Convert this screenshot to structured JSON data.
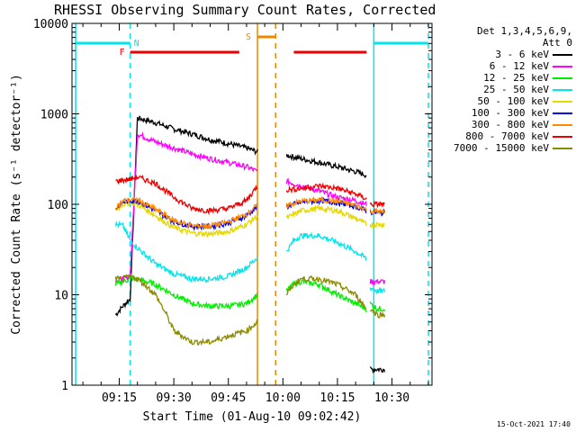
{
  "title": "RHESSI Observing Summary Count Rates, Corrected",
  "timestamp": "15-Oct-2021 17:40",
  "legend": {
    "header": [
      "Det 1,3,4,5,6,9,",
      "Att 0"
    ]
  },
  "chart_data": {
    "type": "line",
    "title": "RHESSI Observing Summary Count Rates, Corrected",
    "xlabel": "Start Time (01-Aug-10 09:02:42)",
    "ylabel": "Corrected Count Rate (s⁻¹ detector⁻¹)",
    "yscale": "log",
    "ylim": [
      1,
      10000
    ],
    "xlim": [
      "09:02",
      "10:41"
    ],
    "xticks": [
      "09:15",
      "09:30",
      "09:45",
      "10:00",
      "10:15",
      "10:30"
    ],
    "yticks": [
      "1",
      "10",
      "100",
      "1000",
      "10000"
    ],
    "legend_position": "right",
    "flags": [
      {
        "name": "N",
        "color": "#00e5ee",
        "segments": [
          [
            "09:03",
            "09:18"
          ],
          [
            "10:25",
            "10:40"
          ]
        ]
      },
      {
        "name": "F",
        "color": "#ee0000",
        "segments": [
          [
            "09:18",
            "09:48"
          ],
          [
            "10:03",
            "10:23"
          ]
        ]
      },
      {
        "name": "S",
        "color": "#ee8800",
        "segments": [
          [
            "09:53",
            "09:58"
          ]
        ]
      }
    ],
    "vertical_lines": [
      {
        "color": "#00e5ee",
        "style": "solid",
        "times": [
          "09:03",
          "10:25"
        ]
      },
      {
        "color": "#00e5ee",
        "style": "dashed",
        "times": [
          "09:18",
          "10:40"
        ]
      },
      {
        "color": "#ee8800",
        "style": "solid",
        "times": [
          "09:53"
        ]
      },
      {
        "color": "#ee8800",
        "style": "dashed",
        "times": [
          "09:58"
        ]
      }
    ],
    "series": [
      {
        "name": "3 - 6 keV",
        "color": "#000000",
        "segments": [
          {
            "t": [
              "09:14",
              "09:16",
              "09:18",
              "09:20",
              "09:25",
              "09:30",
              "09:35",
              "09:40",
              "09:45",
              "09:50",
              "09:53"
            ],
            "y": [
              6,
              7.5,
              9,
              900,
              800,
              680,
              600,
              520,
              470,
              420,
              380
            ]
          },
          {
            "t": [
              "10:01",
              "10:05",
              "10:10",
              "10:15",
              "10:20",
              "10:23"
            ],
            "y": [
              350,
              320,
              290,
              260,
              230,
              210
            ]
          },
          {
            "t": [
              "10:24",
              "10:28"
            ],
            "y": [
              1.5,
              1.5
            ]
          }
        ]
      },
      {
        "name": "6 - 12 keV",
        "color": "#ff00ff",
        "segments": [
          {
            "t": [
              "09:14",
              "09:16",
              "09:18",
              "09:20",
              "09:25",
              "09:30",
              "09:35",
              "09:40",
              "09:45",
              "09:50",
              "09:53"
            ],
            "y": [
              14,
              15,
              16,
              600,
              490,
              420,
              360,
              320,
              290,
              260,
              230
            ]
          },
          {
            "t": [
              "10:01",
              "10:05",
              "10:10",
              "10:15",
              "10:20",
              "10:23"
            ],
            "y": [
              180,
              160,
              140,
              120,
              110,
              100
            ]
          },
          {
            "t": [
              "10:24",
              "10:28"
            ],
            "y": [
              14,
              14
            ]
          }
        ]
      },
      {
        "name": "12 - 25 keV",
        "color": "#00ee00",
        "segments": [
          {
            "t": [
              "09:14",
              "09:16",
              "09:18",
              "09:20",
              "09:25",
              "09:30",
              "09:35",
              "09:40",
              "09:45",
              "09:50",
              "09:53"
            ],
            "y": [
              13,
              14,
              15,
              15,
              13,
              10,
              8,
              7.5,
              7.5,
              8,
              10
            ]
          },
          {
            "t": [
              "10:01",
              "10:03",
              "10:05",
              "10:10",
              "10:15",
              "10:20",
              "10:23"
            ],
            "y": [
              11,
              13,
              14,
              13,
              10,
              8,
              7
            ]
          },
          {
            "t": [
              "10:24",
              "10:26",
              "10:28"
            ],
            "y": [
              8,
              7,
              7
            ]
          }
        ]
      },
      {
        "name": "25 - 50 keV",
        "color": "#00e5ee",
        "segments": [
          {
            "t": [
              "09:14",
              "09:16",
              "09:18",
              "09:20",
              "09:22",
              "09:25",
              "09:30",
              "09:35",
              "09:40",
              "09:45",
              "09:50",
              "09:53"
            ],
            "y": [
              60,
              58,
              40,
              33,
              28,
              22,
              17,
              15,
              15,
              16,
              20,
              26
            ]
          },
          {
            "t": [
              "10:01",
              "10:03",
              "10:05",
              "10:10",
              "10:15",
              "10:20",
              "10:23"
            ],
            "y": [
              30,
              40,
              45,
              45,
              38,
              30,
              25
            ]
          },
          {
            "t": [
              "10:24",
              "10:26",
              "10:28"
            ],
            "y": [
              12,
              11,
              11
            ]
          }
        ]
      },
      {
        "name": "50 - 100 keV",
        "color": "#e6d800",
        "segments": [
          {
            "t": [
              "09:14",
              "09:16",
              "09:18",
              "09:20",
              "09:25",
              "09:30",
              "09:35",
              "09:40",
              "09:45",
              "09:50",
              "09:53"
            ],
            "y": [
              88,
              100,
              105,
              100,
              75,
              55,
              48,
              47,
              50,
              60,
              75
            ]
          },
          {
            "t": [
              "10:01",
              "10:05",
              "10:10",
              "10:15",
              "10:20",
              "10:23"
            ],
            "y": [
              70,
              85,
              90,
              85,
              70,
              60
            ]
          },
          {
            "t": [
              "10:24",
              "10:28"
            ],
            "y": [
              60,
              60
            ]
          }
        ]
      },
      {
        "name": "100 - 300 keV",
        "color": "#0000ee",
        "segments": [
          {
            "t": [
              "09:14",
              "09:16",
              "09:18",
              "09:20",
              "09:25",
              "09:30",
              "09:35",
              "09:40",
              "09:45",
              "09:50",
              "09:53"
            ],
            "y": [
              90,
              105,
              110,
              110,
              85,
              65,
              57,
              57,
              62,
              75,
              95
            ]
          },
          {
            "t": [
              "10:01",
              "10:05",
              "10:10",
              "10:15",
              "10:20",
              "10:23"
            ],
            "y": [
              95,
              105,
              110,
              105,
              95,
              85
            ]
          },
          {
            "t": [
              "10:24",
              "10:28"
            ],
            "y": [
              82,
              80
            ]
          }
        ]
      },
      {
        "name": "300 - 800 keV",
        "color": "#ff8800",
        "segments": [
          {
            "t": [
              "09:14",
              "09:16",
              "09:18",
              "09:20",
              "09:25",
              "09:30",
              "09:35",
              "09:40",
              "09:45",
              "09:50",
              "09:53"
            ],
            "y": [
              92,
              108,
              112,
              112,
              88,
              66,
              58,
              58,
              64,
              78,
              98
            ]
          },
          {
            "t": [
              "10:01",
              "10:05",
              "10:10",
              "10:15",
              "10:20",
              "10:23"
            ],
            "y": [
              97,
              108,
              112,
              108,
              98,
              88
            ]
          },
          {
            "t": [
              "10:24",
              "10:28"
            ],
            "y": [
              84,
              82
            ]
          }
        ]
      },
      {
        "name": "800 - 7000 keV",
        "color": "#ee0000",
        "segments": [
          {
            "t": [
              "09:14",
              "09:16",
              "09:18",
              "09:20",
              "09:25",
              "09:30",
              "09:35",
              "09:40",
              "09:45",
              "09:50",
              "09:53"
            ],
            "y": [
              180,
              185,
              190,
              200,
              170,
              120,
              90,
              85,
              90,
              110,
              160
            ]
          },
          {
            "t": [
              "10:01",
              "10:05",
              "10:10",
              "10:15",
              "10:20",
              "10:23"
            ],
            "y": [
              145,
              150,
              160,
              150,
              130,
              115
            ]
          },
          {
            "t": [
              "10:24",
              "10:28"
            ],
            "y": [
              100,
              100
            ]
          }
        ]
      },
      {
        "name": "7000 - 15000 keV",
        "color": "#8b8b00",
        "segments": [
          {
            "t": [
              "09:14",
              "09:16",
              "09:18",
              "09:20",
              "09:22",
              "09:25",
              "09:28",
              "09:30",
              "09:35",
              "09:40",
              "09:45",
              "09:50",
              "09:53"
            ],
            "y": [
              15,
              15,
              16,
              15,
              13,
              10,
              6,
              4,
              3,
              3,
              3.5,
              4,
              5
            ]
          },
          {
            "t": [
              "10:01",
              "10:03",
              "10:05",
              "10:10",
              "10:15",
              "10:20",
              "10:23"
            ],
            "y": [
              10,
              13,
              15,
              15,
              13,
              10,
              7
            ]
          },
          {
            "t": [
              "10:24",
              "10:26",
              "10:28"
            ],
            "y": [
              7,
              6,
              6
            ]
          }
        ]
      }
    ]
  }
}
